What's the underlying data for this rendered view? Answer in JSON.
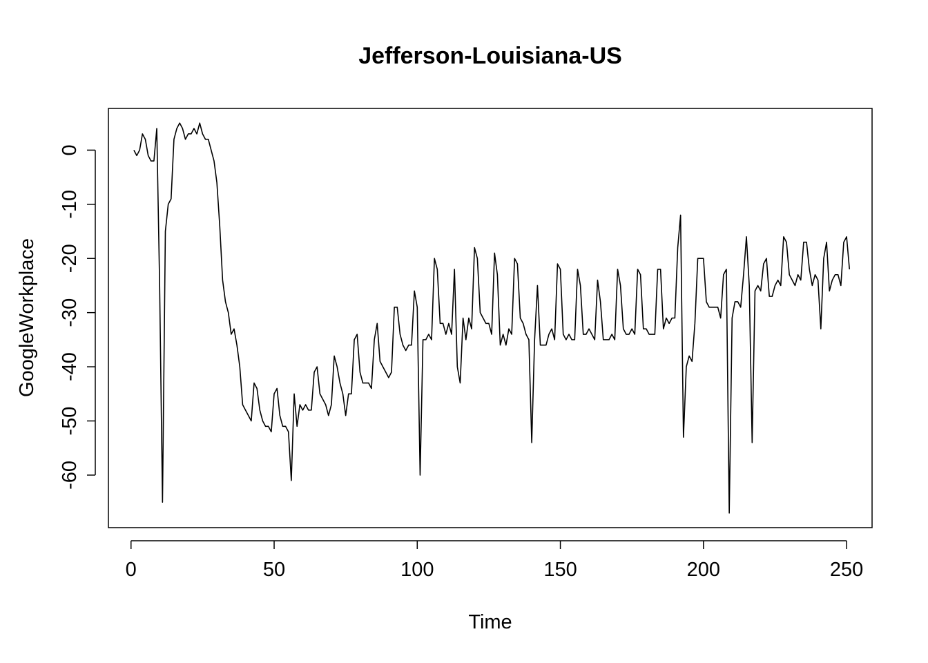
{
  "chart_data": {
    "type": "line",
    "title": "Jefferson-Louisiana-US",
    "xlabel": "Time",
    "ylabel": "GoogleWorkplace",
    "xlim": [
      -7.9,
      258.9
    ],
    "ylim": [
      -69.7,
      7.7
    ],
    "xticks": [
      0,
      50,
      100,
      150,
      200,
      250
    ],
    "yticks": [
      0,
      -10,
      -20,
      -30,
      -40,
      -50,
      -60
    ],
    "grid": false,
    "legend": "none",
    "series": [
      {
        "color": "#000000",
        "x_start": 1,
        "values": [
          0,
          -1,
          0,
          3,
          2,
          -1,
          -2,
          -2,
          4,
          -25,
          -65,
          -15,
          -10,
          -9,
          2,
          4,
          5,
          4,
          2,
          3,
          3,
          4,
          3,
          5,
          3,
          2,
          2,
          0,
          -2,
          -6,
          -14,
          -24,
          -28,
          -30,
          -34,
          -33,
          -36,
          -40,
          -47,
          -48,
          -49,
          -50,
          -43,
          -44,
          -48,
          -50,
          -51,
          -51,
          -52,
          -45,
          -44,
          -49,
          -51,
          -51,
          -52,
          -61,
          -45,
          -51,
          -47,
          -48,
          -47,
          -48,
          -48,
          -41,
          -40,
          -45,
          -46,
          -47,
          -49,
          -47,
          -38,
          -40,
          -43,
          -45,
          -49,
          -45,
          -45,
          -35,
          -34,
          -41,
          -43,
          -43,
          -43,
          -44,
          -35,
          -32,
          -39,
          -40,
          -41,
          -42,
          -41,
          -29,
          -29,
          -34,
          -36,
          -37,
          -36,
          -36,
          -26,
          -29,
          -60,
          -35,
          -35,
          -34,
          -35,
          -20,
          -22,
          -32,
          -32,
          -34,
          -32,
          -34,
          -22,
          -40,
          -43,
          -31,
          -35,
          -31,
          -33,
          -18,
          -20,
          -30,
          -31,
          -32,
          -32,
          -34,
          -19,
          -23,
          -36,
          -34,
          -36,
          -33,
          -34,
          -20,
          -21,
          -31,
          -32,
          -34,
          -35,
          -54,
          -35,
          -25,
          -36,
          -36,
          -36,
          -34,
          -33,
          -35,
          -21,
          -22,
          -34,
          -35,
          -34,
          -35,
          -35,
          -22,
          -25,
          -34,
          -34,
          -33,
          -34,
          -35,
          -24,
          -28,
          -35,
          -35,
          -35,
          -34,
          -35,
          -22,
          -25,
          -33,
          -34,
          -34,
          -33,
          -34,
          -22,
          -23,
          -33,
          -33,
          -34,
          -34,
          -34,
          -22,
          -22,
          -33,
          -31,
          -32,
          -31,
          -31,
          -18,
          -12,
          -53,
          -40,
          -38,
          -39,
          -32,
          -20,
          -20,
          -20,
          -28,
          -29,
          -29,
          -29,
          -29,
          -31,
          -23,
          -22,
          -67,
          -31,
          -28,
          -28,
          -29,
          -23,
          -16,
          -25,
          -54,
          -26,
          -25,
          -26,
          -21,
          -20,
          -27,
          -27,
          -25,
          -24,
          -25,
          -16,
          -17,
          -23,
          -24,
          -25,
          -23,
          -24,
          -17,
          -17,
          -22,
          -25,
          -23,
          -24,
          -33,
          -20,
          -17,
          -26,
          -24,
          -23,
          -23,
          -25,
          -17,
          -16,
          -22
        ]
      }
    ]
  }
}
